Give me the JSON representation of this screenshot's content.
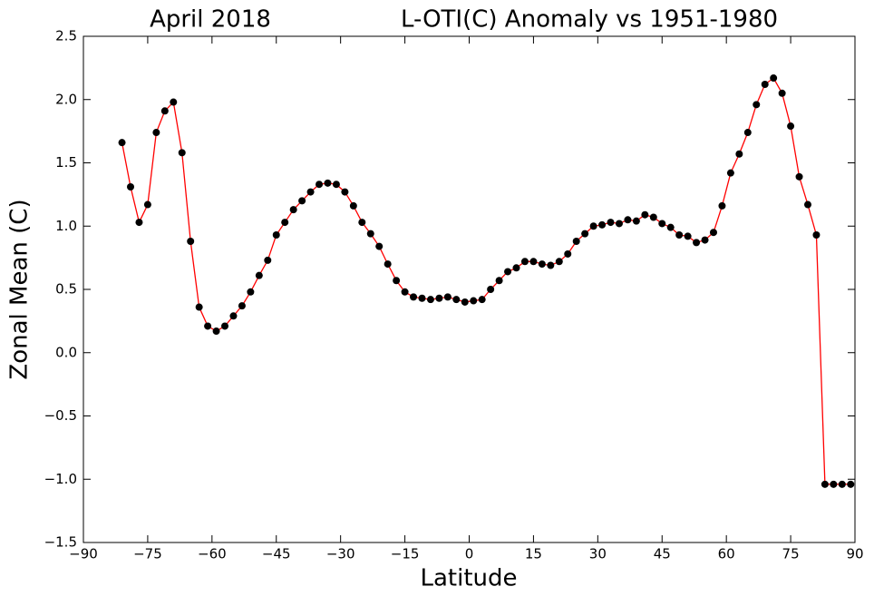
{
  "chart_data": {
    "type": "line",
    "title_parts": [
      "April 2018",
      "L-OTI(C) Anomaly vs 1951-1980"
    ],
    "xlabel": "Latitude",
    "ylabel": "Zonal Mean (C)",
    "x": [
      -81,
      -79,
      -77,
      -75,
      -73,
      -71,
      -69,
      -67,
      -65,
      -63,
      -61,
      -59,
      -57,
      -55,
      -53,
      -51,
      -49,
      -47,
      -45,
      -43,
      -41,
      -39,
      -37,
      -35,
      -33,
      -31,
      -29,
      -27,
      -25,
      -23,
      -21,
      -19,
      -17,
      -15,
      -13,
      -11,
      -9,
      -7,
      -5,
      -3,
      -1,
      1,
      3,
      5,
      7,
      9,
      11,
      13,
      15,
      17,
      19,
      21,
      23,
      25,
      27,
      29,
      31,
      33,
      35,
      37,
      39,
      41,
      43,
      45,
      47,
      49,
      51,
      53,
      55,
      57,
      59,
      61,
      63,
      65,
      67,
      69,
      71,
      73,
      75,
      77,
      79,
      81,
      83,
      85,
      87,
      89
    ],
    "series": [
      {
        "color": "#ff0000",
        "marker_color": "#000000",
        "values": [
          1.66,
          1.31,
          1.03,
          1.17,
          1.74,
          1.91,
          1.98,
          1.58,
          0.88,
          0.36,
          0.21,
          0.17,
          0.21,
          0.29,
          0.37,
          0.48,
          0.61,
          0.73,
          0.93,
          1.03,
          1.13,
          1.2,
          1.27,
          1.33,
          1.34,
          1.33,
          1.27,
          1.16,
          1.03,
          0.94,
          0.84,
          0.7,
          0.57,
          0.48,
          0.44,
          0.43,
          0.42,
          0.43,
          0.44,
          0.42,
          0.4,
          0.41,
          0.42,
          0.5,
          0.57,
          0.64,
          0.67,
          0.72,
          0.72,
          0.7,
          0.69,
          0.72,
          0.78,
          0.88,
          0.94,
          1.0,
          1.01,
          1.03,
          1.02,
          1.05,
          1.04,
          1.09,
          1.07,
          1.02,
          0.99,
          0.93,
          0.92,
          0.87,
          0.89,
          0.95,
          1.16,
          1.42,
          1.57,
          1.74,
          1.96,
          2.12,
          2.17,
          2.05,
          1.79,
          1.39,
          1.17,
          0.93,
          -1.04,
          -1.04,
          -1.04,
          -1.04
        ]
      }
    ],
    "xlim": [
      -90,
      90
    ],
    "xticks": [
      {
        "value": -90,
        "label": "−90"
      },
      {
        "value": -75,
        "label": "−75"
      },
      {
        "value": -60,
        "label": "−60"
      },
      {
        "value": -45,
        "label": "−45"
      },
      {
        "value": -30,
        "label": "−30"
      },
      {
        "value": -15,
        "label": "−15"
      },
      0,
      15,
      30,
      45,
      60,
      75,
      90
    ],
    "ylim": [
      -1.5,
      2.5
    ],
    "yticks": [
      {
        "value": -1.5,
        "label": "−1.5"
      },
      {
        "value": -1,
        "label": "−1.0"
      },
      {
        "value": -0.5,
        "label": "−0.5"
      },
      {
        "value": 0,
        "label": "0.0"
      },
      0.5,
      {
        "value": 1,
        "label": "1.0"
      },
      1.5,
      {
        "value": 2,
        "label": "2.0"
      },
      2.5
    ],
    "grid": false
  }
}
